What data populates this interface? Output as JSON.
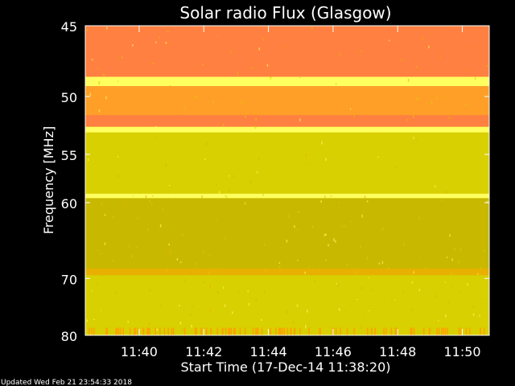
{
  "chart_data": {
    "type": "heatmap",
    "title": "Solar radio Flux (Glasgow)",
    "xlabel": "Start Time (17-Dec-14 11:38:20)",
    "ylabel": "Frequency [MHz]",
    "xlim": [
      "11:38:20",
      "11:50:50"
    ],
    "ylim": [
      80,
      45
    ],
    "y_scale": "reciprocal",
    "x_ticks": [
      "11:40",
      "11:42",
      "11:44",
      "11:46",
      "11:48",
      "11:50"
    ],
    "y_ticks": [
      45,
      50,
      55,
      60,
      70,
      80
    ],
    "footer": "Updated Wed Feb 21 23:54:33 2018",
    "grid": false,
    "colors": {
      "hot": "#ff8040",
      "warm": "#ff9f28",
      "amber": "#e8b000",
      "yellow_bright": "#ffff60",
      "olive": "#c8b800",
      "olive_light": "#d8d000",
      "orange": "#ffa000"
    },
    "intensity_bands": [
      {
        "from_mhz": 45.0,
        "to_mhz": 48.5,
        "level": "hot"
      },
      {
        "from_mhz": 48.5,
        "to_mhz": 49.2,
        "level": "yellow_bright"
      },
      {
        "from_mhz": 49.2,
        "to_mhz": 51.5,
        "level": "warm"
      },
      {
        "from_mhz": 51.5,
        "to_mhz": 52.5,
        "level": "hot"
      },
      {
        "from_mhz": 52.5,
        "to_mhz": 53.0,
        "level": "yellow_bright"
      },
      {
        "from_mhz": 53.0,
        "to_mhz": 59.0,
        "level": "olive_light"
      },
      {
        "from_mhz": 59.0,
        "to_mhz": 59.5,
        "level": "yellow_bright"
      },
      {
        "from_mhz": 59.5,
        "to_mhz": 68.5,
        "level": "olive"
      },
      {
        "from_mhz": 68.5,
        "to_mhz": 69.5,
        "level": "amber"
      },
      {
        "from_mhz": 69.5,
        "to_mhz": 80.0,
        "level": "olive_light"
      }
    ]
  }
}
